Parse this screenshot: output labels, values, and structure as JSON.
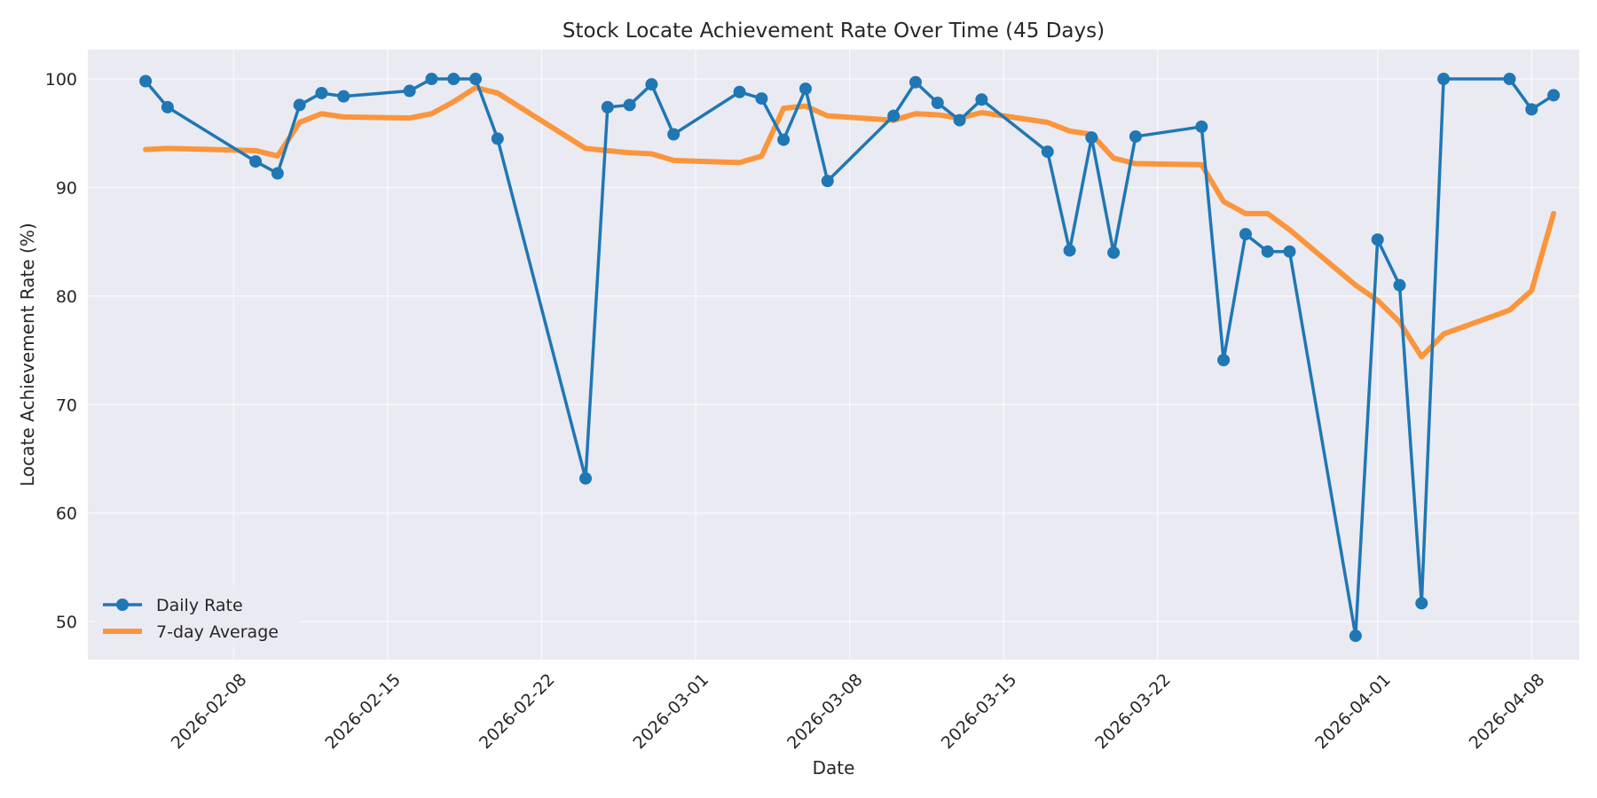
{
  "chart_data": {
    "type": "line",
    "title": "Stock Locate Achievement Rate Over Time (45 Days)",
    "xlabel": "Date",
    "ylabel": "Locate Achievement Rate (%)",
    "x_tick_labels": [
      "2026-02-08",
      "2026-02-15",
      "2026-02-22",
      "2026-03-01",
      "2026-03-08",
      "2026-03-15",
      "2026-03-22",
      "2026-04-01",
      "2026-04-08"
    ],
    "y_tick_labels": [
      "50",
      "60",
      "70",
      "80",
      "90",
      "100"
    ],
    "xlim": [
      "2026-02-01T09:00",
      "2026-04-10T04:00"
    ],
    "ylim": [
      46.5,
      102.7
    ],
    "grid": true,
    "legend_position": "lower-left",
    "x": [
      "2026-02-04",
      "2026-02-05",
      "2026-02-09",
      "2026-02-10",
      "2026-02-11",
      "2026-02-12",
      "2026-02-13",
      "2026-02-16",
      "2026-02-17",
      "2026-02-18",
      "2026-02-19",
      "2026-02-20",
      "2026-02-24",
      "2026-02-25",
      "2026-02-26",
      "2026-02-27",
      "2026-02-28",
      "2026-03-03",
      "2026-03-04",
      "2026-03-05",
      "2026-03-06",
      "2026-03-07",
      "2026-03-10",
      "2026-03-11",
      "2026-03-12",
      "2026-03-13",
      "2026-03-14",
      "2026-03-17",
      "2026-03-18",
      "2026-03-19",
      "2026-03-20",
      "2026-03-21",
      "2026-03-24",
      "2026-03-25",
      "2026-03-26",
      "2026-03-27",
      "2026-03-28",
      "2026-03-31",
      "2026-04-01",
      "2026-04-02",
      "2026-04-03",
      "2026-04-04",
      "2026-04-07",
      "2026-04-08",
      "2026-04-09"
    ],
    "series": [
      {
        "name": "Daily Rate",
        "color": "#1f77b4",
        "marker": "circle",
        "values": [
          99.8,
          97.4,
          92.4,
          91.3,
          97.6,
          98.7,
          98.4,
          98.9,
          100.0,
          100.0,
          100.0,
          94.5,
          63.2,
          97.4,
          97.6,
          99.5,
          94.9,
          98.8,
          98.2,
          94.4,
          99.1,
          90.6,
          96.6,
          99.7,
          97.8,
          96.2,
          98.1,
          93.3,
          84.2,
          94.6,
          84.0,
          94.7,
          95.6,
          74.1,
          85.7,
          84.1,
          84.1,
          48.7,
          85.2,
          81.0,
          51.7,
          100.0,
          100.0,
          97.2,
          98.5
        ]
      },
      {
        "name": "7-day Average",
        "color": "#ff7f0e",
        "values": [
          93.5,
          93.6,
          93.4,
          92.9,
          96.0,
          96.8,
          96.5,
          96.4,
          96.8,
          97.9,
          99.2,
          98.7,
          93.6,
          93.4,
          93.2,
          93.1,
          92.5,
          92.3,
          92.9,
          97.3,
          97.5,
          96.6,
          96.2,
          96.8,
          96.7,
          96.4,
          96.9,
          96.0,
          95.2,
          94.9,
          92.7,
          92.2,
          92.1,
          88.7,
          87.6,
          87.6,
          86.1,
          81.0,
          79.6,
          77.6,
          74.4,
          76.5,
          78.7,
          80.5,
          87.6
        ]
      }
    ]
  }
}
